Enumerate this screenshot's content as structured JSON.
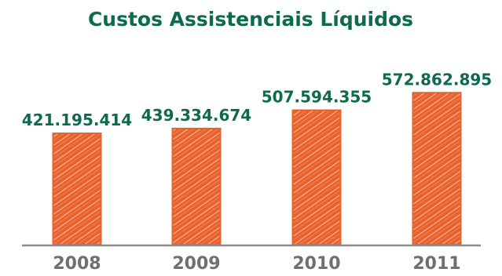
{
  "colors": {
    "title": "#0e6a4d",
    "label": "#0e6a4d",
    "bar": "#e8602a",
    "axis": "#8c8c8c",
    "tick": "#6f6f6f"
  },
  "chart_data": {
    "type": "bar",
    "title": "Custos Assistenciais Líquidos",
    "xlabel": "",
    "ylabel": "",
    "grid": false,
    "categories": [
      "2008",
      "2009",
      "2010",
      "2011"
    ],
    "values": [
      421195414,
      439334674,
      507594355,
      572862895
    ],
    "value_labels": [
      "421.195.414",
      "439.334.674",
      "507.594.355",
      "572.862.895"
    ],
    "ylim": [
      0,
      600000000
    ]
  }
}
